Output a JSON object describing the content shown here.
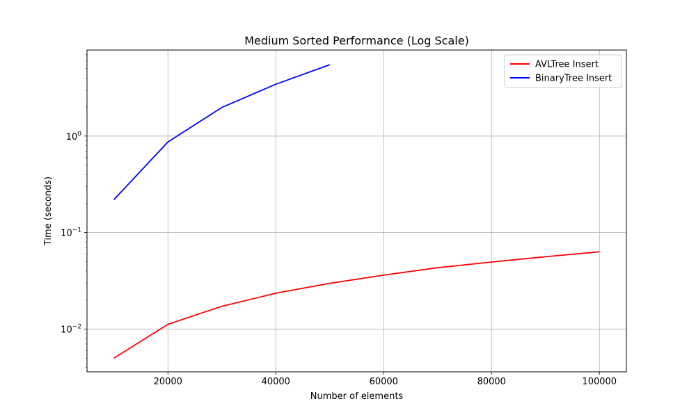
{
  "chart_data": {
    "type": "line",
    "title": "Medium Sorted Performance (Log Scale)",
    "xlabel": "Number of elements",
    "ylabel": "Time (seconds)",
    "yscale": "log",
    "xlim": [
      5000,
      105000
    ],
    "ylim": [
      0.0036,
      7.8
    ],
    "x_ticks": [
      20000,
      40000,
      60000,
      80000,
      100000
    ],
    "x_tick_labels": [
      "20000",
      "40000",
      "60000",
      "80000",
      "100000"
    ],
    "y_major_ticks": [
      0.01,
      0.1,
      1
    ],
    "y_tick_labels": [
      {
        "base": "10",
        "exp": "−2"
      },
      {
        "base": "10",
        "exp": "−1"
      },
      {
        "base": "10",
        "exp": "0"
      }
    ],
    "grid": true,
    "legend_position": "top-right",
    "series": [
      {
        "name": "AVLTree Insert",
        "color": "#ff0000",
        "x": [
          10000,
          20000,
          30000,
          40000,
          50000,
          60000,
          70000,
          80000,
          90000,
          100000
        ],
        "y": [
          0.005,
          0.0112,
          0.0172,
          0.0235,
          0.0298,
          0.0362,
          0.0432,
          0.0495,
          0.0562,
          0.0632
        ]
      },
      {
        "name": "BinaryTree Insert",
        "color": "#0000ff",
        "x": [
          10000,
          20000,
          30000,
          40000,
          50000
        ],
        "y": [
          0.22,
          0.87,
          1.98,
          3.45,
          5.5
        ]
      }
    ]
  }
}
